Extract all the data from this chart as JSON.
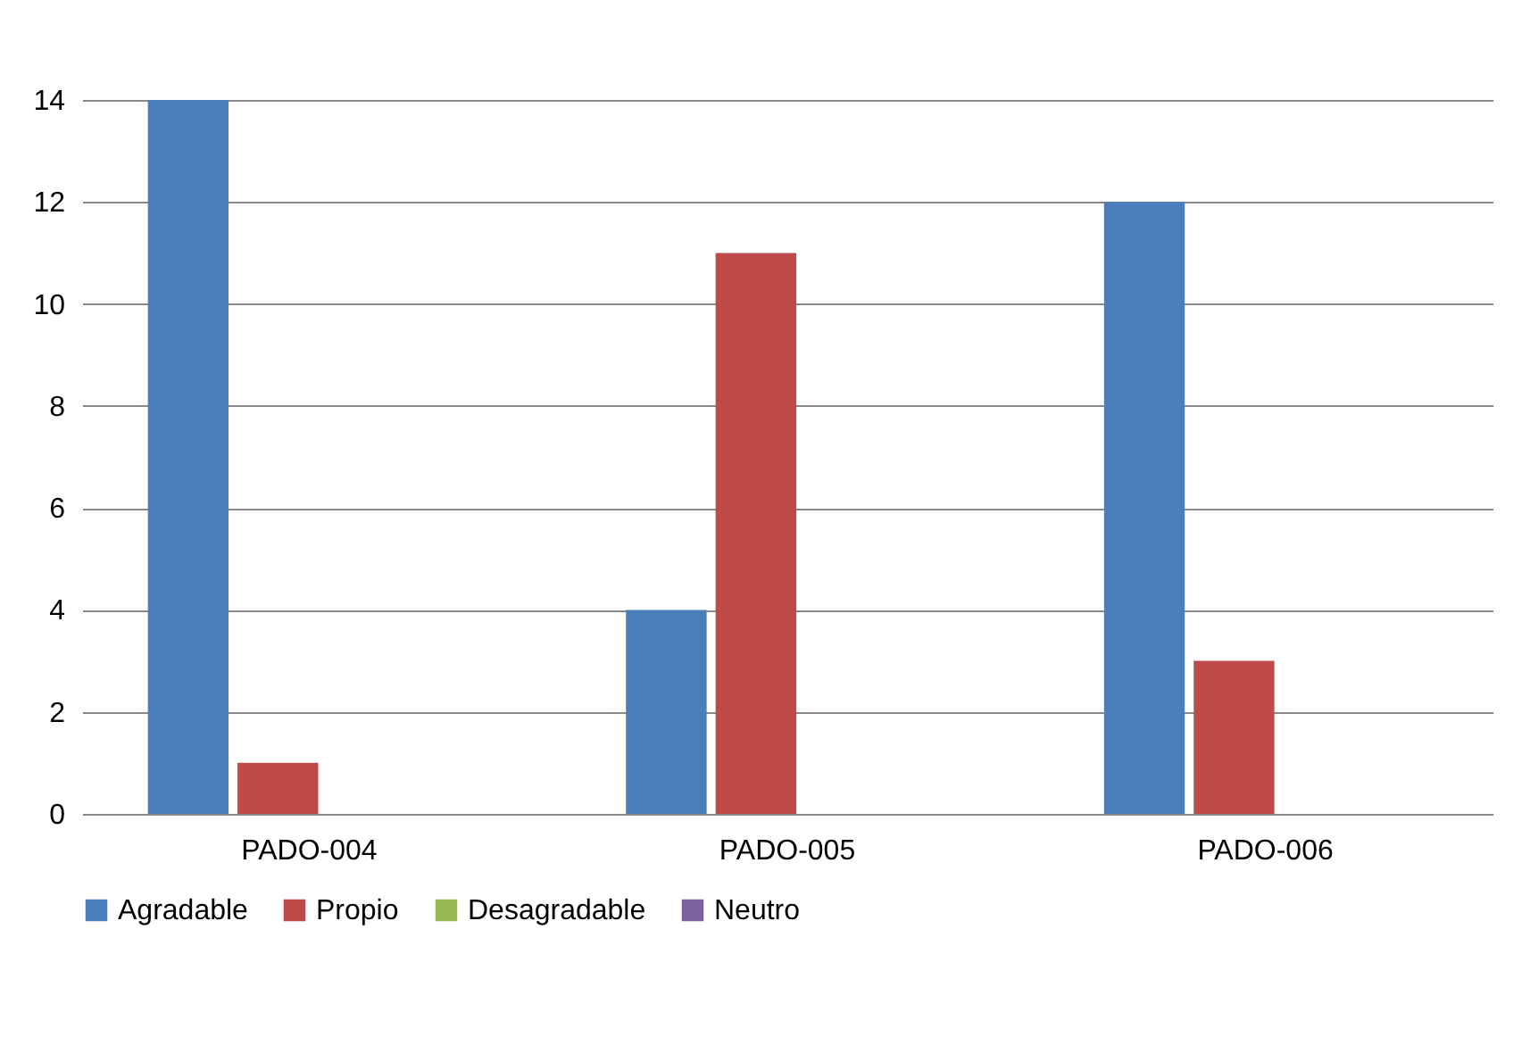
{
  "chart_data": {
    "type": "bar",
    "categories": [
      "PADO-004",
      "PADO-005",
      "PADO-006"
    ],
    "series": [
      {
        "name": "Agradable",
        "color": "#4a7ebb",
        "values": [
          14,
          4,
          12
        ]
      },
      {
        "name": "Propio",
        "color": "#be4b48",
        "values": [
          1,
          11,
          3
        ]
      },
      {
        "name": "Desagradable",
        "color": "#98b954",
        "values": [
          0,
          0,
          0
        ]
      },
      {
        "name": "Neutro",
        "color": "#7d60a0",
        "values": [
          0,
          0,
          0
        ]
      }
    ],
    "ylim": [
      0,
      14
    ],
    "yticks": [
      0,
      2,
      4,
      6,
      8,
      10,
      12,
      14
    ],
    "grid": "y",
    "legend": "bottom"
  }
}
